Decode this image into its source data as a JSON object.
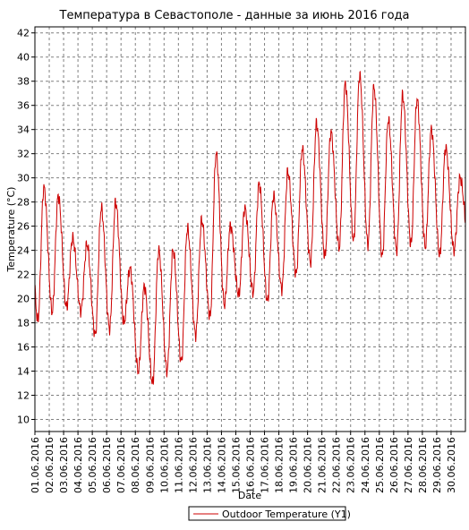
{
  "chart_data": {
    "type": "line",
    "title": "Температура в Севастополе - данные за июнь 2016 года",
    "xlabel": "Date",
    "ylabel": "Temperature (°C)",
    "ylim": [
      9,
      42.5
    ],
    "yticks": [
      10,
      12,
      14,
      16,
      18,
      20,
      22,
      24,
      26,
      28,
      30,
      32,
      34,
      36,
      38,
      40,
      42
    ],
    "xlim": [
      1,
      31
    ],
    "xtick_labels": [
      "01.06.2016",
      "02.06.2016",
      "03.06.2016",
      "04.06.2016",
      "05.06.2016",
      "06.06.2016",
      "07.06.2016",
      "08.06.2016",
      "09.06.2016",
      "10.06.2016",
      "11.06.2016",
      "12.06.2016",
      "13.06.2016",
      "14.06.2016",
      "15.06.2016",
      "16.06.2016",
      "17.06.2016",
      "18.06.2016",
      "19.06.2016",
      "20.06.2016",
      "21.06.2016",
      "22.06.2016",
      "23.06.2016",
      "24.06.2016",
      "25.06.2016",
      "26.06.2016",
      "27.06.2016",
      "28.06.2016",
      "29.06.2016",
      "30.06.2016"
    ],
    "grid": true,
    "legend_position": "bottom-center",
    "series": [
      {
        "name": "Outdoor Temperature (Y1)",
        "color": "#cc0000",
        "daily_min": [
          18.2,
          18.9,
          19.3,
          19.0,
          17.0,
          17.5,
          18.0,
          14.0,
          13.0,
          14.0,
          14.8,
          17.0,
          18.5,
          19.5,
          20.3,
          20.5,
          19.8,
          20.8,
          22.0,
          23.0,
          23.5,
          24.2,
          24.8,
          24.5,
          23.5,
          24.0,
          24.5,
          24.3,
          23.6,
          24.0
        ],
        "daily_max": [
          29.2,
          28.5,
          25.0,
          24.5,
          27.5,
          28.0,
          22.5,
          21.0,
          24.0,
          24.0,
          25.8,
          26.5,
          32.0,
          26.0,
          27.5,
          29.5,
          28.5,
          30.5,
          32.4,
          34.5,
          33.8,
          37.8,
          38.5,
          37.5,
          34.8,
          36.8,
          36.5,
          34.0,
          32.5,
          30.0
        ],
        "end_value": 24.9
      }
    ]
  }
}
